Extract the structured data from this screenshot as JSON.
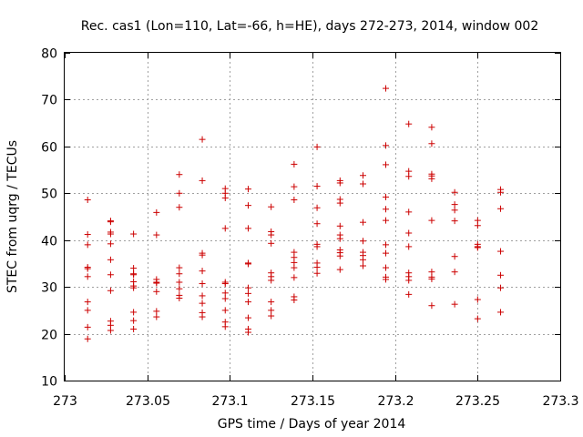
{
  "chart_data": {
    "type": "scatter",
    "title": "Rec. cas1 (Lon=110, Lat=-66, h=HE), days 272-273, 2014, window 002",
    "xlabel": "GPS time / Days of year 2014",
    "ylabel": "STEC from uqrg / TECUs",
    "xlim": [
      273,
      273.3
    ],
    "ylim": [
      10,
      80
    ],
    "xticks": [
      "273",
      "273.05",
      "273.1",
      "273.15",
      "273.2",
      "273.25",
      "273.3"
    ],
    "xtick_values": [
      273,
      273.05,
      273.1,
      273.15,
      273.2,
      273.25,
      273.3
    ],
    "yticks": [
      "10",
      "20",
      "30",
      "40",
      "50",
      "60",
      "70",
      "80"
    ],
    "ytick_values": [
      10,
      20,
      30,
      40,
      50,
      60,
      70,
      80
    ],
    "grid": true,
    "marker": "+",
    "color": "#cc0000",
    "series": [
      {
        "points": [
          [
            273.0139,
            48.6
          ],
          [
            273.0139,
            41.2
          ],
          [
            273.0139,
            39.0
          ],
          [
            273.0139,
            34.2
          ],
          [
            273.0139,
            33.9
          ],
          [
            273.0139,
            32.2
          ],
          [
            273.0139,
            26.8
          ],
          [
            273.0139,
            25.0
          ],
          [
            273.0139,
            21.4
          ],
          [
            273.0139,
            18.9
          ],
          [
            273.0278,
            44.1
          ],
          [
            273.0278,
            43.9
          ],
          [
            273.0278,
            41.7
          ],
          [
            273.0278,
            41.3
          ],
          [
            273.0278,
            39.2
          ],
          [
            273.0278,
            35.8
          ],
          [
            273.0278,
            32.6
          ],
          [
            273.0278,
            29.2
          ],
          [
            273.0278,
            22.7
          ],
          [
            273.0278,
            21.8
          ],
          [
            273.0278,
            20.7
          ],
          [
            273.0417,
            41.3
          ],
          [
            273.0417,
            34.0
          ],
          [
            273.0417,
            32.8
          ],
          [
            273.0417,
            32.6
          ],
          [
            273.0417,
            31.1
          ],
          [
            273.0417,
            30.2
          ],
          [
            273.0417,
            29.8
          ],
          [
            273.0417,
            24.6
          ],
          [
            273.0417,
            22.8
          ],
          [
            273.0417,
            21.0
          ],
          [
            273.0556,
            45.9
          ],
          [
            273.0556,
            41.1
          ],
          [
            273.0556,
            31.6
          ],
          [
            273.0556,
            31.0
          ],
          [
            273.0556,
            30.8
          ],
          [
            273.0556,
            29.0
          ],
          [
            273.0556,
            24.8
          ],
          [
            273.0556,
            23.6
          ],
          [
            273.0694,
            54.0
          ],
          [
            273.0694,
            50.0
          ],
          [
            273.0694,
            47.0
          ],
          [
            273.0694,
            34.1
          ],
          [
            273.0694,
            32.8
          ],
          [
            273.0694,
            31.0
          ],
          [
            273.0694,
            29.6
          ],
          [
            273.0694,
            28.2
          ],
          [
            273.0694,
            27.6
          ],
          [
            273.0833,
            61.5
          ],
          [
            273.0833,
            52.7
          ],
          [
            273.0833,
            37.2
          ],
          [
            273.0833,
            36.8
          ],
          [
            273.0833,
            33.4
          ],
          [
            273.0833,
            30.7
          ],
          [
            273.0833,
            28.1
          ],
          [
            273.0833,
            26.5
          ],
          [
            273.0833,
            24.5
          ],
          [
            273.0833,
            23.6
          ],
          [
            273.0972,
            51.0
          ],
          [
            273.0972,
            50.0
          ],
          [
            273.0972,
            49.0
          ],
          [
            273.0972,
            42.5
          ],
          [
            273.0972,
            31.0
          ],
          [
            273.0972,
            30.7
          ],
          [
            273.0972,
            28.7
          ],
          [
            273.0972,
            27.5
          ],
          [
            273.0972,
            25.0
          ],
          [
            273.0972,
            22.5
          ],
          [
            273.0972,
            21.5
          ],
          [
            273.1111,
            50.9
          ],
          [
            273.1111,
            47.4
          ],
          [
            273.1111,
            42.5
          ],
          [
            273.1111,
            35.1
          ],
          [
            273.1111,
            34.9
          ],
          [
            273.1111,
            29.8
          ],
          [
            273.1111,
            28.6
          ],
          [
            273.1111,
            26.8
          ],
          [
            273.1111,
            23.4
          ],
          [
            273.1111,
            21.0
          ],
          [
            273.1111,
            20.3
          ],
          [
            273.125,
            47.1
          ],
          [
            273.125,
            41.8
          ],
          [
            273.125,
            41.1
          ],
          [
            273.125,
            39.3
          ],
          [
            273.125,
            33.0
          ],
          [
            273.125,
            32.2
          ],
          [
            273.125,
            31.4
          ],
          [
            273.125,
            26.8
          ],
          [
            273.125,
            25.0
          ],
          [
            273.125,
            23.8
          ],
          [
            273.1389,
            56.2
          ],
          [
            273.1389,
            51.4
          ],
          [
            273.1389,
            48.6
          ],
          [
            273.1389,
            37.4
          ],
          [
            273.1389,
            36.3
          ],
          [
            273.1389,
            35.2
          ],
          [
            273.1389,
            34.1
          ],
          [
            273.1389,
            32.0
          ],
          [
            273.1389,
            27.9
          ],
          [
            273.1389,
            27.2
          ],
          [
            273.1528,
            59.9
          ],
          [
            273.1528,
            51.5
          ],
          [
            273.1528,
            46.9
          ],
          [
            273.1528,
            43.5
          ],
          [
            273.1528,
            39.1
          ],
          [
            273.1528,
            38.6
          ],
          [
            273.1528,
            35.1
          ],
          [
            273.1528,
            34.2
          ],
          [
            273.1528,
            32.9
          ],
          [
            273.1667,
            52.7
          ],
          [
            273.1667,
            52.2
          ],
          [
            273.1667,
            48.7
          ],
          [
            273.1667,
            47.9
          ],
          [
            273.1667,
            43.0
          ],
          [
            273.1667,
            41.1
          ],
          [
            273.1667,
            40.3
          ],
          [
            273.1667,
            37.9
          ],
          [
            273.1667,
            37.3
          ],
          [
            273.1667,
            36.6
          ],
          [
            273.1667,
            33.7
          ],
          [
            273.1806,
            53.8
          ],
          [
            273.1806,
            52.0
          ],
          [
            273.1806,
            43.8
          ],
          [
            273.1806,
            39.8
          ],
          [
            273.1806,
            37.4
          ],
          [
            273.1806,
            36.7
          ],
          [
            273.1806,
            35.8
          ],
          [
            273.1806,
            34.5
          ],
          [
            273.1944,
            72.4
          ],
          [
            273.1944,
            60.2
          ],
          [
            273.1944,
            56.1
          ],
          [
            273.1944,
            49.2
          ],
          [
            273.1944,
            46.6
          ],
          [
            273.1944,
            44.2
          ],
          [
            273.1944,
            39.0
          ],
          [
            273.1944,
            37.2
          ],
          [
            273.1944,
            34.1
          ],
          [
            273.1944,
            32.1
          ],
          [
            273.1944,
            31.6
          ],
          [
            273.2083,
            64.8
          ],
          [
            273.2083,
            54.7
          ],
          [
            273.2083,
            53.6
          ],
          [
            273.2083,
            46.0
          ],
          [
            273.2083,
            41.5
          ],
          [
            273.2083,
            38.6
          ],
          [
            273.2083,
            33.0
          ],
          [
            273.2083,
            32.2
          ],
          [
            273.2083,
            31.4
          ],
          [
            273.2083,
            28.4
          ],
          [
            273.2222,
            64.1
          ],
          [
            273.2222,
            60.6
          ],
          [
            273.2222,
            54.1
          ],
          [
            273.2222,
            53.7
          ],
          [
            273.2222,
            53.1
          ],
          [
            273.2222,
            44.2
          ],
          [
            273.2222,
            33.2
          ],
          [
            273.2222,
            32.1
          ],
          [
            273.2222,
            31.7
          ],
          [
            273.2222,
            26.0
          ],
          [
            273.2361,
            50.2
          ],
          [
            273.2361,
            47.6
          ],
          [
            273.2361,
            46.4
          ],
          [
            273.2361,
            44.1
          ],
          [
            273.2361,
            36.5
          ],
          [
            273.2361,
            33.2
          ],
          [
            273.2361,
            26.3
          ],
          [
            273.25,
            44.2
          ],
          [
            273.25,
            43.1
          ],
          [
            273.25,
            39.1
          ],
          [
            273.25,
            38.6
          ],
          [
            273.25,
            38.4
          ],
          [
            273.25,
            27.3
          ],
          [
            273.25,
            23.2
          ],
          [
            273.2639,
            50.8
          ],
          [
            273.2639,
            50.2
          ],
          [
            273.2639,
            46.7
          ],
          [
            273.2639,
            37.6
          ],
          [
            273.2639,
            32.5
          ],
          [
            273.2639,
            29.8
          ],
          [
            273.2639,
            24.6
          ]
        ]
      }
    ]
  }
}
